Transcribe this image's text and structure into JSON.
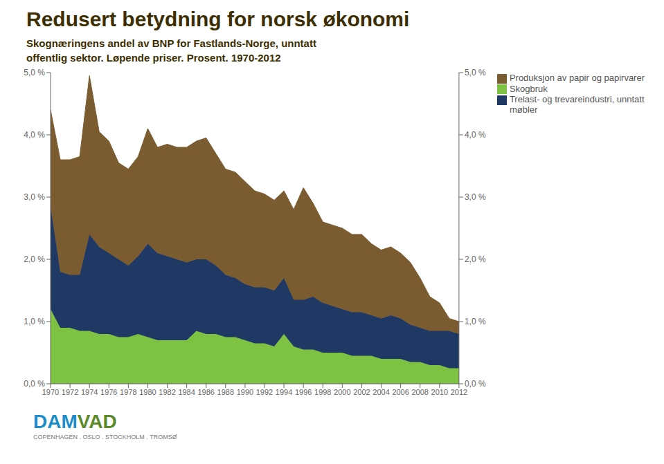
{
  "chart_data": {
    "type": "area",
    "stacked": true,
    "title": "Redusert betydning for norsk økonomi",
    "subtitle": "Skognæringens andel av BNP for Fastlands-Norge, unntatt\noffentlig sektor. Løpende priser. Prosent. 1970-2012",
    "x": [
      1970,
      1971,
      1972,
      1973,
      1974,
      1975,
      1976,
      1977,
      1978,
      1979,
      1980,
      1981,
      1982,
      1983,
      1984,
      1985,
      1986,
      1987,
      1988,
      1989,
      1990,
      1991,
      1992,
      1993,
      1994,
      1995,
      1996,
      1997,
      1998,
      1999,
      2000,
      2001,
      2002,
      2003,
      2004,
      2005,
      2006,
      2007,
      2008,
      2009,
      2010,
      2011,
      2012
    ],
    "series": [
      {
        "name": "Skogbruk",
        "color": "#7DC242",
        "values": [
          1.2,
          0.9,
          0.9,
          0.85,
          0.85,
          0.8,
          0.8,
          0.75,
          0.75,
          0.8,
          0.75,
          0.7,
          0.7,
          0.7,
          0.7,
          0.85,
          0.8,
          0.8,
          0.75,
          0.75,
          0.7,
          0.65,
          0.65,
          0.6,
          0.8,
          0.6,
          0.55,
          0.55,
          0.5,
          0.5,
          0.5,
          0.45,
          0.45,
          0.45,
          0.4,
          0.4,
          0.4,
          0.35,
          0.35,
          0.3,
          0.3,
          0.25,
          0.25
        ]
      },
      {
        "name": "Trelast- og trevareindustri, unntatt\nmøbler",
        "color": "#1F3864",
        "values": [
          1.65,
          0.9,
          0.85,
          0.9,
          1.55,
          1.4,
          1.3,
          1.25,
          1.15,
          1.25,
          1.5,
          1.4,
          1.35,
          1.3,
          1.25,
          1.15,
          1.2,
          1.1,
          1.0,
          0.95,
          0.9,
          0.9,
          0.9,
          0.9,
          0.9,
          0.75,
          0.8,
          0.85,
          0.8,
          0.75,
          0.7,
          0.7,
          0.7,
          0.65,
          0.65,
          0.7,
          0.65,
          0.6,
          0.55,
          0.55,
          0.55,
          0.6,
          0.55
        ]
      },
      {
        "name": "Produksjon av papir og papirvarer",
        "color": "#7B5C30",
        "values": [
          1.55,
          1.8,
          1.85,
          1.9,
          2.55,
          1.85,
          1.8,
          1.55,
          1.55,
          1.6,
          1.85,
          1.7,
          1.8,
          1.8,
          1.85,
          1.9,
          1.95,
          1.8,
          1.7,
          1.7,
          1.65,
          1.55,
          1.5,
          1.45,
          1.4,
          1.45,
          1.8,
          1.5,
          1.3,
          1.3,
          1.3,
          1.25,
          1.25,
          1.15,
          1.1,
          1.1,
          1.05,
          1.0,
          0.8,
          0.55,
          0.45,
          0.2,
          0.2
        ]
      }
    ],
    "xlim": [
      1970,
      2012
    ],
    "xticks": [
      1970,
      1972,
      1974,
      1976,
      1978,
      1980,
      1982,
      1984,
      1986,
      1988,
      1990,
      1992,
      1994,
      1996,
      1998,
      2000,
      2002,
      2004,
      2006,
      2008,
      2010,
      2012
    ],
    "ylim": [
      0,
      5.0
    ],
    "yticks": [
      {
        "value": 0.0,
        "label": "0,0 %"
      },
      {
        "value": 1.0,
        "label": "1,0 %"
      },
      {
        "value": 2.0,
        "label": "2,0 %"
      },
      {
        "value": 3.0,
        "label": "3,0 %"
      },
      {
        "value": 4.0,
        "label": "4,0 %"
      },
      {
        "value": 5.0,
        "label": "5,0 %"
      }
    ],
    "y2lim": [
      0,
      5.0
    ],
    "y2ticks": [
      {
        "value": 0.0,
        "label": "0,0 %"
      },
      {
        "value": 1.0,
        "label": "1,0 %"
      },
      {
        "value": 2.0,
        "label": "2,0 %"
      },
      {
        "value": 3.0,
        "label": "3,0 %"
      },
      {
        "value": 4.0,
        "label": "4,0 %"
      },
      {
        "value": 5.0,
        "label": "5,0 %"
      }
    ],
    "grid": false,
    "legend": "upper right",
    "annotations": [
      {
        "text": "DAM",
        "color": "#1E8CC8"
      },
      {
        "text": "VAD",
        "color": "#5C8A28"
      },
      {
        "text": "COPENHAGEN . OSLO . STOCKHOLM . TROMSØ"
      }
    ]
  }
}
